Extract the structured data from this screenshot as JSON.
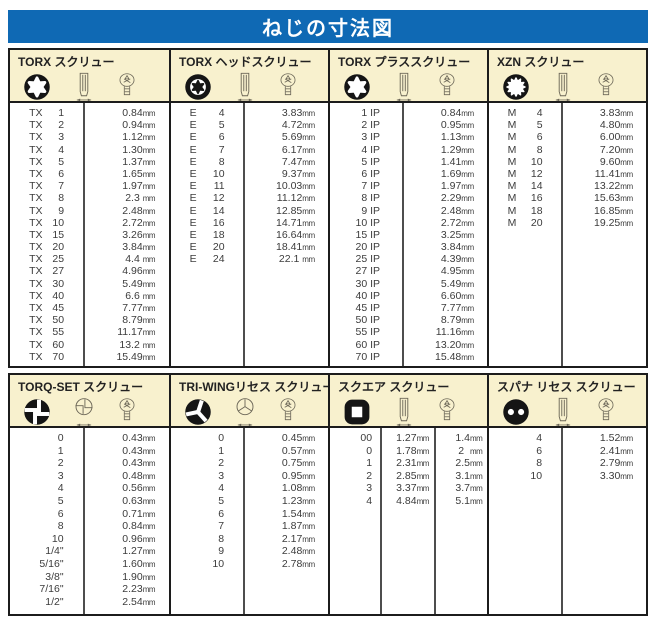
{
  "title": "ねじの寸法図",
  "unit": "mm",
  "colors": {
    "banner_blue": "#0f69b4",
    "header_cream": "#f8f1ce",
    "border": "#1c1c1c",
    "text": "#3c3c3c"
  },
  "sections": [
    {
      "title": "TORX スクリュー",
      "size_prefix": "TX",
      "icons": [
        "torx-recess-icon",
        "screw-side-icon",
        "screw-top-icon"
      ],
      "rows": [
        [
          "1",
          "0.84"
        ],
        [
          "2",
          "0.94"
        ],
        [
          "3",
          "1.12"
        ],
        [
          "4",
          "1.30"
        ],
        [
          "5",
          "1.37"
        ],
        [
          "6",
          "1.65"
        ],
        [
          "7",
          "1.97"
        ],
        [
          "8",
          "2.3 "
        ],
        [
          "9",
          "2.48"
        ],
        [
          "10",
          "2.72"
        ],
        [
          "15",
          "3.26"
        ],
        [
          "20",
          "3.84"
        ],
        [
          "25",
          "4.4 "
        ],
        [
          "27",
          "4.96"
        ],
        [
          "30",
          "5.49"
        ],
        [
          "40",
          "6.6 "
        ],
        [
          "45",
          "7.77"
        ],
        [
          "50",
          "8.79"
        ],
        [
          "55",
          "11.17"
        ],
        [
          "60",
          "13.2 "
        ],
        [
          "70",
          "15.49"
        ]
      ]
    },
    {
      "title": "TORX ヘッドスクリュー",
      "size_prefix": "E",
      "icons": [
        "torx-head-icon",
        "screw-side-icon",
        "screw-top-icon"
      ],
      "rows": [
        [
          "4",
          "3.83"
        ],
        [
          "5",
          "4.72"
        ],
        [
          "6",
          "5.69"
        ],
        [
          "7",
          "6.17"
        ],
        [
          "8",
          "7.47"
        ],
        [
          "10",
          "9.37"
        ],
        [
          "11",
          "10.03"
        ],
        [
          "12",
          "11.12"
        ],
        [
          "14",
          "12.85"
        ],
        [
          "16",
          "14.71"
        ],
        [
          "18",
          "16.64"
        ],
        [
          "20",
          "18.41"
        ],
        [
          "24",
          "22.1 "
        ]
      ]
    },
    {
      "title": "TORX プラススクリュー",
      "size_suffix": "IP",
      "icons": [
        "torx-plus-recess-icon",
        "screw-side-icon",
        "screw-top-icon"
      ],
      "rows": [
        [
          "1",
          "0.84"
        ],
        [
          "2",
          "0.95"
        ],
        [
          "3",
          "1.13"
        ],
        [
          "4",
          "1.29"
        ],
        [
          "5",
          "1.41"
        ],
        [
          "6",
          "1.69"
        ],
        [
          "7",
          "1.97"
        ],
        [
          "8",
          "2.29"
        ],
        [
          "9",
          "2.48"
        ],
        [
          "10",
          "2.72"
        ],
        [
          "15",
          "3.25"
        ],
        [
          "20",
          "3.84"
        ],
        [
          "25",
          "4.39"
        ],
        [
          "27",
          "4.95"
        ],
        [
          "30",
          "5.49"
        ],
        [
          "40",
          "6.60"
        ],
        [
          "45",
          "7.77"
        ],
        [
          "50",
          "8.79"
        ],
        [
          "55",
          "11.16"
        ],
        [
          "60",
          "13.20"
        ],
        [
          "70",
          "15.48"
        ]
      ]
    },
    {
      "title": "XZN スクリュー",
      "size_prefix": "M",
      "icons": [
        "xzn-recess-icon",
        "screw-side-icon",
        "screw-top-icon"
      ],
      "rows": [
        [
          "4",
          "3.83"
        ],
        [
          "5",
          "4.80"
        ],
        [
          "6",
          "6.00"
        ],
        [
          "8",
          "7.20"
        ],
        [
          "10",
          "9.60"
        ],
        [
          "12",
          "11.41"
        ],
        [
          "14",
          "13.22"
        ],
        [
          "16",
          "15.63"
        ],
        [
          "18",
          "16.85"
        ],
        [
          "20",
          "19.25"
        ]
      ]
    },
    {
      "title": "TORQ-SET スクリュー",
      "icons": [
        "torq-set-recess-icon",
        "cross-front-icon",
        "screw-top-icon"
      ],
      "rows": [
        [
          "0",
          "0.43"
        ],
        [
          "1",
          "0.43"
        ],
        [
          "2",
          "0.43"
        ],
        [
          "3",
          "0.48"
        ],
        [
          "4",
          "0.56"
        ],
        [
          "5",
          "0.63"
        ],
        [
          "6",
          "0.71"
        ],
        [
          "8",
          "0.84"
        ],
        [
          "10",
          "0.96"
        ],
        [
          "1/4\"",
          "1.27"
        ],
        [
          "5/16\"",
          "1.60"
        ],
        [
          "3/8\"",
          "1.90"
        ],
        [
          "7/16\"",
          "2.23"
        ],
        [
          "1/2\"",
          "2.54"
        ]
      ]
    },
    {
      "title": "TRI-WINGリセス スクリュー",
      "icons": [
        "tri-wing-recess-icon",
        "tri-wing-front-icon",
        "screw-top-icon"
      ],
      "rows": [
        [
          "0",
          "0.45"
        ],
        [
          "1",
          "0.57"
        ],
        [
          "2",
          "0.75"
        ],
        [
          "3",
          "0.95"
        ],
        [
          "4",
          "1.08"
        ],
        [
          "5",
          "1.23"
        ],
        [
          "6",
          "1.54"
        ],
        [
          "7",
          "1.87"
        ],
        [
          "8",
          "2.17"
        ],
        [
          "9",
          "2.48"
        ],
        [
          "10",
          "2.78"
        ]
      ]
    },
    {
      "title": "スクエア スクリュー",
      "icons": [
        "square-recess-icon",
        "screw-side-icon",
        "screw-top-icon"
      ],
      "rows": [
        [
          "00",
          "1.27",
          "1.4"
        ],
        [
          "0",
          "1.78",
          "2  "
        ],
        [
          "1",
          "2.31",
          "2.5"
        ],
        [
          "2",
          "2.85",
          "3.1"
        ],
        [
          "3",
          "3.37",
          "3.7"
        ],
        [
          "4",
          "4.84",
          "5.1"
        ]
      ]
    },
    {
      "title": "スパナ リセス スクリュー",
      "icons": [
        "spanner-recess-icon",
        "screw-side-icon",
        "screw-top-icon"
      ],
      "rows": [
        [
          "4",
          "1.52"
        ],
        [
          "6",
          "2.41"
        ],
        [
          "8",
          "2.79"
        ],
        [
          "10",
          "3.30"
        ]
      ]
    }
  ]
}
